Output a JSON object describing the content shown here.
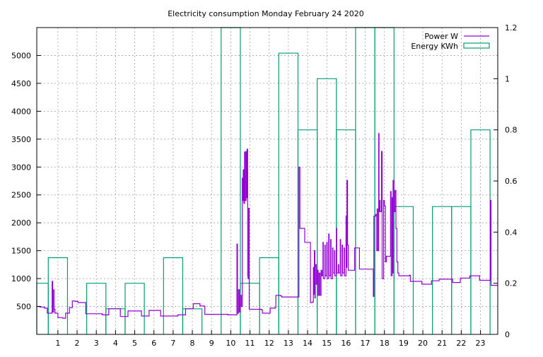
{
  "chart_data": {
    "type": "line",
    "title": "Electricity consumption Monday February 24 2020",
    "x_ticks": [
      "1",
      "2",
      "3",
      "4",
      "5",
      "6",
      "7",
      "8",
      "9",
      "10",
      "11",
      "12",
      "13",
      "14",
      "15",
      "16",
      "17",
      "18",
      "19",
      "20",
      "21",
      "22",
      "23"
    ],
    "xlim": [
      -0.1,
      23.9
    ],
    "y_left": {
      "ticks": [
        "500",
        "1000",
        "1500",
        "2000",
        "2500",
        "3000",
        "3500",
        "4000",
        "4500",
        "5000"
      ],
      "range": [
        0,
        5500
      ]
    },
    "y_right": {
      "ticks": [
        "0",
        "0.2",
        "0.4",
        "0.6",
        "0.8",
        "1",
        "1.2"
      ],
      "range": [
        0,
        1.2
      ]
    },
    "grid": true,
    "legend_placement": "top-right",
    "series": [
      {
        "name": "Power W",
        "color": "#9400d3",
        "style": "steps",
        "points": [
          [
            -0.1,
            500
          ],
          [
            0.05,
            490
          ],
          [
            0.3,
            470
          ],
          [
            0.45,
            380
          ],
          [
            0.65,
            380
          ],
          [
            0.7,
            950
          ],
          [
            0.73,
            400
          ],
          [
            0.78,
            800
          ],
          [
            0.8,
            450
          ],
          [
            0.85,
            380
          ],
          [
            1.0,
            300
          ],
          [
            1.25,
            290
          ],
          [
            1.4,
            380
          ],
          [
            1.6,
            480
          ],
          [
            1.75,
            600
          ],
          [
            1.9,
            590
          ],
          [
            2.05,
            570
          ],
          [
            2.4,
            570
          ],
          [
            2.45,
            370
          ],
          [
            3.3,
            350
          ],
          [
            3.6,
            350
          ],
          [
            3.65,
            460
          ],
          [
            4.2,
            460
          ],
          [
            4.25,
            320
          ],
          [
            4.6,
            320
          ],
          [
            4.65,
            420
          ],
          [
            5.3,
            420
          ],
          [
            5.35,
            330
          ],
          [
            5.7,
            330
          ],
          [
            5.75,
            430
          ],
          [
            6.3,
            430
          ],
          [
            6.35,
            330
          ],
          [
            7.2,
            330
          ],
          [
            7.25,
            350
          ],
          [
            7.6,
            350
          ],
          [
            7.65,
            460
          ],
          [
            7.9,
            460
          ],
          [
            8.05,
            550
          ],
          [
            8.35,
            550
          ],
          [
            8.4,
            510
          ],
          [
            8.6,
            510
          ],
          [
            8.65,
            360
          ],
          [
            9.8,
            360
          ],
          [
            9.85,
            350
          ],
          [
            10.3,
            350
          ],
          [
            10.32,
            1620
          ],
          [
            10.35,
            380
          ],
          [
            10.4,
            800
          ],
          [
            10.45,
            400
          ],
          [
            10.5,
            700
          ],
          [
            10.55,
            500
          ],
          [
            10.6,
            2800
          ],
          [
            10.62,
            2400
          ],
          [
            10.65,
            2950
          ],
          [
            10.68,
            2350
          ],
          [
            10.72,
            3270
          ],
          [
            10.75,
            2400
          ],
          [
            10.8,
            3280
          ],
          [
            10.83,
            2450
          ],
          [
            10.85,
            3320
          ],
          [
            10.88,
            1050
          ],
          [
            10.9,
            1000
          ],
          [
            10.93,
            2260
          ],
          [
            10.96,
            450
          ],
          [
            11.6,
            440
          ],
          [
            11.65,
            380
          ],
          [
            12.0,
            380
          ],
          [
            12.05,
            470
          ],
          [
            12.3,
            480
          ],
          [
            12.35,
            700
          ],
          [
            12.6,
            690
          ],
          [
            12.65,
            670
          ],
          [
            13.5,
            670
          ],
          [
            13.55,
            3000
          ],
          [
            13.6,
            1900
          ],
          [
            13.8,
            1900
          ],
          [
            13.85,
            1650
          ],
          [
            14.1,
            1650
          ],
          [
            14.15,
            570
          ],
          [
            14.25,
            580
          ],
          [
            14.3,
            1200
          ],
          [
            14.32,
            720
          ],
          [
            14.35,
            1500
          ],
          [
            14.38,
            650
          ],
          [
            14.4,
            1250
          ],
          [
            14.45,
            900
          ],
          [
            14.5,
            1150
          ],
          [
            14.55,
            700
          ],
          [
            14.6,
            1100
          ],
          [
            14.65,
            700
          ],
          [
            14.7,
            1150
          ],
          [
            14.75,
            1050
          ],
          [
            14.8,
            1650
          ],
          [
            14.82,
            1000
          ],
          [
            14.9,
            1600
          ],
          [
            14.92,
            1050
          ],
          [
            15.0,
            1650
          ],
          [
            15.02,
            1000
          ],
          [
            15.1,
            1800
          ],
          [
            15.12,
            1050
          ],
          [
            15.2,
            1700
          ],
          [
            15.22,
            1000
          ],
          [
            15.3,
            1550
          ],
          [
            15.32,
            1100
          ],
          [
            15.4,
            1500
          ],
          [
            15.42,
            1050
          ],
          [
            15.5,
            1900
          ],
          [
            15.52,
            1100
          ],
          [
            15.6,
            1250
          ],
          [
            15.62,
            1100
          ],
          [
            15.7,
            1700
          ],
          [
            15.72,
            1050
          ],
          [
            15.8,
            1600
          ],
          [
            15.82,
            1100
          ],
          [
            15.9,
            1550
          ],
          [
            15.92,
            1050
          ],
          [
            16.0,
            2120
          ],
          [
            16.02,
            1200
          ],
          [
            16.05,
            2760
          ],
          [
            16.08,
            1600
          ],
          [
            16.12,
            1150
          ],
          [
            16.4,
            1150
          ],
          [
            16.45,
            1550
          ],
          [
            16.65,
            1550
          ],
          [
            16.7,
            1170
          ],
          [
            17.4,
            1170
          ],
          [
            17.42,
            680
          ],
          [
            17.45,
            2120
          ],
          [
            17.55,
            2150
          ],
          [
            17.6,
            1500
          ],
          [
            17.62,
            2250
          ],
          [
            17.65,
            1500
          ],
          [
            17.7,
            3600
          ],
          [
            17.72,
            2200
          ],
          [
            17.75,
            2400
          ],
          [
            17.78,
            2200
          ],
          [
            17.85,
            3280
          ],
          [
            17.88,
            1000
          ],
          [
            17.92,
            1000
          ],
          [
            17.96,
            2400
          ],
          [
            18.0,
            2300
          ],
          [
            18.05,
            1300
          ],
          [
            18.1,
            1400
          ],
          [
            18.3,
            1400
          ],
          [
            18.32,
            2560
          ],
          [
            18.35,
            1050
          ],
          [
            18.4,
            2450
          ],
          [
            18.42,
            1100
          ],
          [
            18.45,
            2760
          ],
          [
            18.5,
            2200
          ],
          [
            18.55,
            2580
          ],
          [
            18.6,
            1900
          ],
          [
            18.65,
            1300
          ],
          [
            18.7,
            1100
          ],
          [
            18.75,
            1050
          ],
          [
            19.0,
            1050
          ],
          [
            19.3,
            1060
          ],
          [
            19.35,
            950
          ],
          [
            19.9,
            950
          ],
          [
            19.95,
            900
          ],
          [
            20.4,
            900
          ],
          [
            20.45,
            960
          ],
          [
            20.8,
            960
          ],
          [
            20.85,
            990
          ],
          [
            21.5,
            990
          ],
          [
            21.55,
            930
          ],
          [
            21.9,
            930
          ],
          [
            21.95,
            1010
          ],
          [
            22.4,
            1010
          ],
          [
            22.45,
            1050
          ],
          [
            22.9,
            1050
          ],
          [
            22.95,
            970
          ],
          [
            23.5,
            970
          ],
          [
            23.52,
            2400
          ],
          [
            23.55,
            880
          ],
          [
            23.9,
            880
          ]
        ]
      },
      {
        "name": "Energy KWh",
        "color": "#009e73",
        "style": "boxes",
        "bars": [
          {
            "x": 0,
            "y": 0.2
          },
          {
            "x": 1,
            "y": 0.3
          },
          {
            "x": 2,
            "y": 0.0
          },
          {
            "x": 3,
            "y": 0.2
          },
          {
            "x": 4,
            "y": 0.1
          },
          {
            "x": 5,
            "y": 0.2
          },
          {
            "x": 6,
            "y": 0.0
          },
          {
            "x": 7,
            "y": 0.3
          },
          {
            "x": 8,
            "y": 0.1
          },
          {
            "x": 9,
            "y": 0.0
          },
          {
            "x": 10,
            "y": 1.3
          },
          {
            "x": 11,
            "y": 0.2
          },
          {
            "x": 12,
            "y": 0.3
          },
          {
            "x": 13,
            "y": 1.1
          },
          {
            "x": 14,
            "y": 0.8
          },
          {
            "x": 15,
            "y": 1.0
          },
          {
            "x": 16,
            "y": 0.8
          },
          {
            "x": 17,
            "y": 1.4
          },
          {
            "x": 18,
            "y": 1.3
          },
          {
            "x": 19,
            "y": 0.5
          },
          {
            "x": 20,
            "y": 0.0
          },
          {
            "x": 21,
            "y": 0.5
          },
          {
            "x": 22,
            "y": 0.5
          },
          {
            "x": 23,
            "y": 0.8
          }
        ]
      }
    ]
  }
}
